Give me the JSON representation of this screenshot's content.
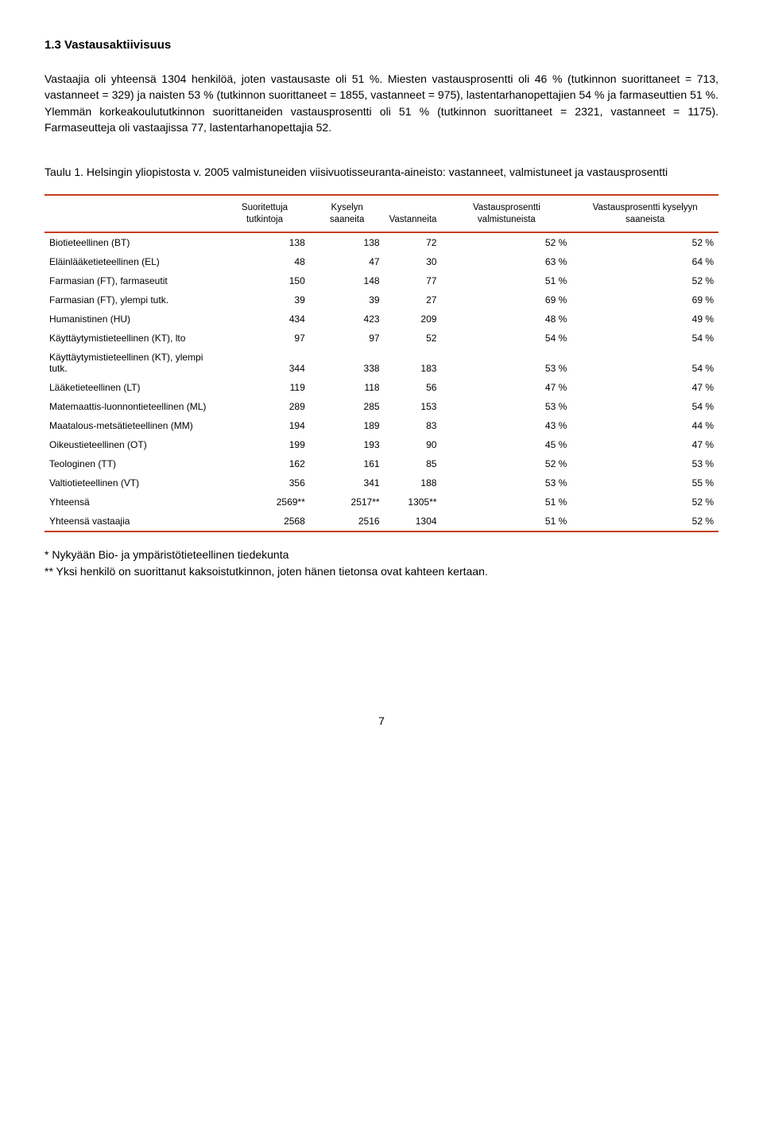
{
  "section": {
    "heading": "1.3 Vastausaktiivisuus",
    "para1": "Vastaajia oli yhteensä 1304 henkilöä, joten vastausaste oli 51 %. Miesten vastausprosentti oli 46 % (tutkinnon suorittaneet = 713, vastanneet = 329) ja naisten 53 % (tutkinnon suorittaneet = 1855, vastanneet = 975), lastentarhanopettajien 54 % ja farmaseuttien 51 %. Ylemmän korkeakoulututkinnon suorittaneiden vastausprosentti oli 51 % (tutkinnon suorittaneet = 2321, vastanneet = 1175). Farmaseutteja oli vastaajissa 77, lastentarhanopettajia 52."
  },
  "tableCaption": "Taulu 1. Helsingin yliopistosta v. 2005 valmistuneiden viisivuotisseuranta-aineisto: vastanneet, valmistuneet ja vastausprosentti",
  "table": {
    "borderColor": "#c43f1d",
    "columns": [
      "",
      "Suoritettuja tutkintoja",
      "Kyselyn saaneita",
      "Vastanneita",
      "Vastausprosentti valmistuneista",
      "Vastausprosentti kyselyyn saaneista"
    ],
    "rows": [
      [
        "Biotieteellinen (BT)",
        "138",
        "138",
        "72",
        "52 %",
        "52 %"
      ],
      [
        "Eläinlääketieteellinen (EL)",
        "48",
        "47",
        "30",
        "63 %",
        "64 %"
      ],
      [
        "Farmasian (FT), farmaseutit",
        "150",
        "148",
        "77",
        "51 %",
        "52 %"
      ],
      [
        "Farmasian (FT), ylempi tutk.",
        "39",
        "39",
        "27",
        "69 %",
        "69 %"
      ],
      [
        "Humanistinen (HU)",
        "434",
        "423",
        "209",
        "48 %",
        "49 %"
      ],
      [
        "Käyttäytymistieteellinen (KT), lto",
        "97",
        "97",
        "52",
        "54 %",
        "54 %"
      ],
      [
        "Käyttäytymistieteellinen (KT), ylempi tutk.",
        "344",
        "338",
        "183",
        "53 %",
        "54 %"
      ],
      [
        "Lääketieteellinen (LT)",
        "119",
        "118",
        "56",
        "47 %",
        "47 %"
      ],
      [
        "Matemaattis-luonnontieteellinen (ML)",
        "289",
        "285",
        "153",
        "53 %",
        "54 %"
      ],
      [
        "Maatalous-metsätieteellinen (MM)",
        "194",
        "189",
        "83",
        "43 %",
        "44 %"
      ],
      [
        "Oikeustieteellinen (OT)",
        "199",
        "193",
        "90",
        "45 %",
        "47 %"
      ],
      [
        "Teologinen (TT)",
        "162",
        "161",
        "85",
        "52 %",
        "53 %"
      ],
      [
        "Valtiotieteellinen (VT)",
        "356",
        "341",
        "188",
        "53 %",
        "55 %"
      ],
      [
        "Yhteensä",
        "2569**",
        "2517**",
        "1305**",
        "51 %",
        "52 %"
      ],
      [
        "Yhteensä vastaajia",
        "2568",
        "2516",
        "1304",
        "51 %",
        "52 %"
      ]
    ]
  },
  "footnotes": {
    "line1": "* Nykyään Bio- ja ympäristötieteellinen tiedekunta",
    "line2": "** Yksi henkilö on suorittanut kaksoistutkinnon, joten hänen tietonsa ovat kahteen kertaan."
  },
  "pageNumber": "7"
}
